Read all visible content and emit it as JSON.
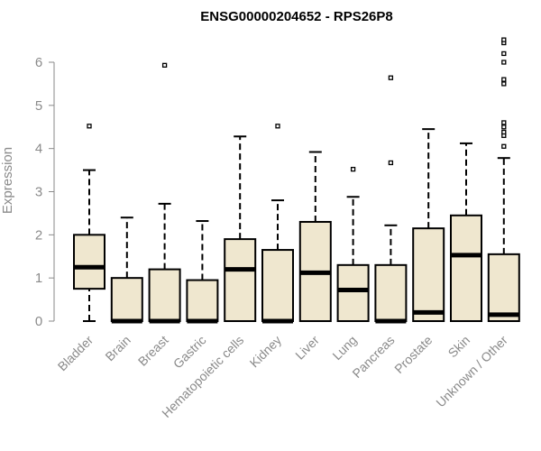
{
  "chart_data": {
    "type": "boxplot",
    "title": "ENSG00000204652 - RPS26P8",
    "ylabel": "Expression",
    "ylim": [
      0,
      6.5
    ],
    "yticks": [
      0,
      1,
      2,
      3,
      4,
      5,
      6
    ],
    "box_fill": "#efe7cf",
    "box_stroke": "#000000",
    "categories": [
      "Bladder",
      "Brain",
      "Breast",
      "Gastric",
      "Hematopoietic cells",
      "Kidney",
      "Liver",
      "Lung",
      "Pancreas",
      "Prostate",
      "Skin",
      "Unknown / Other"
    ],
    "boxes": [
      {
        "name": "Bladder",
        "whisker_low": 0.0,
        "q1": 0.75,
        "median": 1.25,
        "q3": 2.0,
        "whisker_high": 3.5,
        "outliers": [
          4.52
        ]
      },
      {
        "name": "Brain",
        "whisker_low": 0.0,
        "q1": 0.0,
        "median": 0.0,
        "q3": 1.0,
        "whisker_high": 2.4,
        "outliers": []
      },
      {
        "name": "Breast",
        "whisker_low": 0.0,
        "q1": 0.0,
        "median": 0.0,
        "q3": 1.2,
        "whisker_high": 2.72,
        "outliers": [
          5.93
        ]
      },
      {
        "name": "Gastric",
        "whisker_low": 0.0,
        "q1": 0.0,
        "median": 0.0,
        "q3": 0.95,
        "whisker_high": 2.32,
        "outliers": []
      },
      {
        "name": "Hematopoietic cells",
        "whisker_low": 0.0,
        "q1": 0.0,
        "median": 1.2,
        "q3": 1.9,
        "whisker_high": 4.28,
        "outliers": []
      },
      {
        "name": "Kidney",
        "whisker_low": 0.0,
        "q1": 0.0,
        "median": 0.0,
        "q3": 1.65,
        "whisker_high": 2.8,
        "outliers": [
          4.52
        ]
      },
      {
        "name": "Liver",
        "whisker_low": 0.0,
        "q1": 0.0,
        "median": 1.12,
        "q3": 2.3,
        "whisker_high": 3.92,
        "outliers": []
      },
      {
        "name": "Lung",
        "whisker_low": 0.0,
        "q1": 0.0,
        "median": 0.72,
        "q3": 1.3,
        "whisker_high": 2.88,
        "outliers": [
          3.52
        ]
      },
      {
        "name": "Pancreas",
        "whisker_low": 0.0,
        "q1": 0.0,
        "median": 0.0,
        "q3": 1.3,
        "whisker_high": 2.22,
        "outliers": [
          3.67,
          5.64
        ]
      },
      {
        "name": "Prostate",
        "whisker_low": 0.0,
        "q1": 0.0,
        "median": 0.2,
        "q3": 2.15,
        "whisker_high": 4.45,
        "outliers": []
      },
      {
        "name": "Skin",
        "whisker_low": 0.0,
        "q1": 0.0,
        "median": 1.53,
        "q3": 2.45,
        "whisker_high": 4.12,
        "outliers": []
      },
      {
        "name": "Unknown / Other",
        "whisker_low": 0.0,
        "q1": 0.0,
        "median": 0.15,
        "q3": 1.55,
        "whisker_high": 3.78,
        "outliers": [
          4.05,
          4.3,
          4.38,
          4.5,
          4.6,
          5.5,
          5.6,
          6.0,
          6.2,
          6.45,
          6.52
        ]
      }
    ]
  }
}
